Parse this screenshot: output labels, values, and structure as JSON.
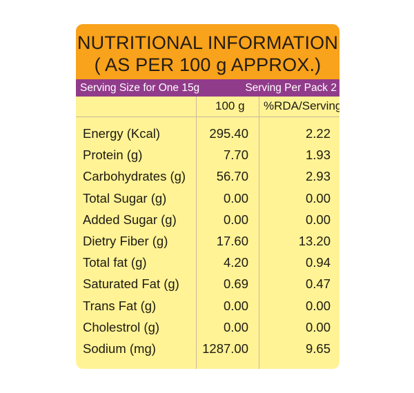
{
  "header": {
    "title_line1": "NUTRITIONAL INFORMATION",
    "title_line2": "( AS PER 100 g APPROX.)"
  },
  "serving": {
    "size_label": "Serving Size for One 15g",
    "per_pack_label": "Serving Per Pack 2"
  },
  "table": {
    "columns": [
      "100 g",
      "%RDA/Serving"
    ],
    "rows": [
      {
        "label": "Energy (Kcal)",
        "per_100g": "295.40",
        "rda": "2.22"
      },
      {
        "label": "Protein (g)",
        "per_100g": "7.70",
        "rda": "1.93"
      },
      {
        "label": "Carbohydrates (g)",
        "per_100g": "56.70",
        "rda": "2.93"
      },
      {
        "label": "Total Sugar (g)",
        "per_100g": "0.00",
        "rda": "0.00"
      },
      {
        "label": "Added Sugar (g)",
        "per_100g": "0.00",
        "rda": "0.00"
      },
      {
        "label": "Dietry Fiber (g)",
        "per_100g": "17.60",
        "rda": "13.20"
      },
      {
        "label": "Total fat (g)",
        "per_100g": "4.20",
        "rda": "0.94"
      },
      {
        "label": "Saturated Fat (g)",
        "per_100g": "0.69",
        "rda": "0.47"
      },
      {
        "label": "Trans Fat (g)",
        "per_100g": "0.00",
        "rda": "0.00"
      },
      {
        "label": "Cholestrol (g)",
        "per_100g": "0.00",
        "rda": "0.00"
      },
      {
        "label": "Sodium (mg)",
        "per_100g": "1287.00",
        "rda": "9.65"
      }
    ]
  },
  "colors": {
    "header_bg": "#f9a21b",
    "serving_bar_bg": "#913b8b",
    "table_bg": "#fff396",
    "text": "#1e1a12"
  }
}
